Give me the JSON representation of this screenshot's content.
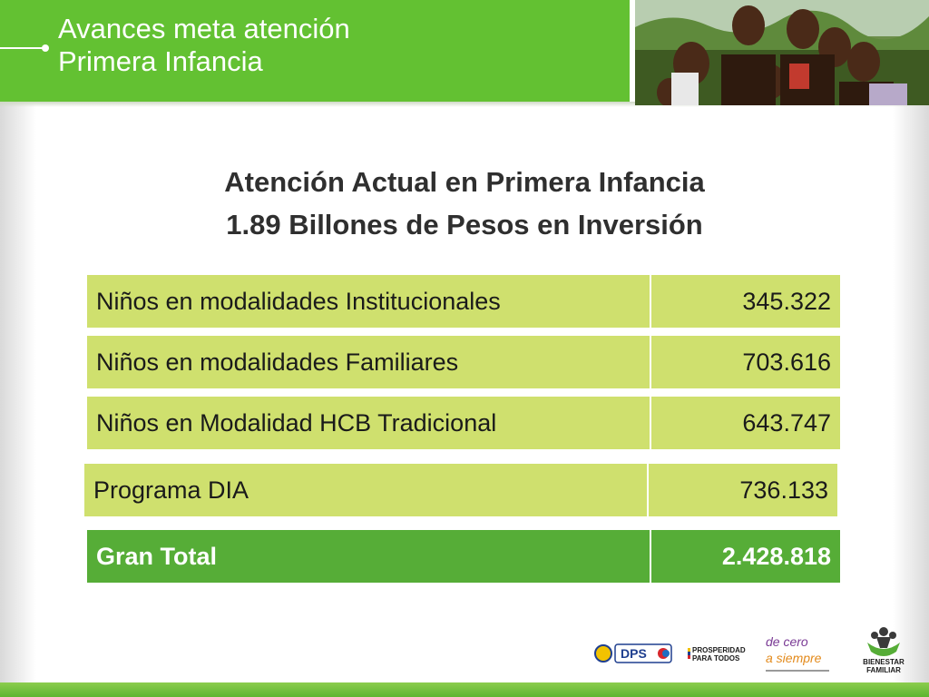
{
  "header": {
    "title_line1": "Avances meta atención",
    "title_line2": "Primera Infancia"
  },
  "subtitle": {
    "line1": "Atención Actual en Primera Infancia",
    "line2": "1.89 Billones de Pesos en Inversión"
  },
  "table": {
    "rows": [
      {
        "label": "Niños en modalidades Institucionales",
        "value": "345.322"
      },
      {
        "label": "Niños en modalidades Familiares",
        "value": "703.616"
      },
      {
        "label": "Niños en Modalidad HCB Tradicional",
        "value": "643.747"
      },
      {
        "label": "Programa DIA",
        "value": "736.133"
      }
    ],
    "total": {
      "label": "Gran Total",
      "value": "2.428.818"
    }
  },
  "logos": {
    "dps": "DPS",
    "prosperidad_line1": "PROSPERIDAD",
    "prosperidad_line2": "PARA TODOS",
    "decero_line1": "de cero",
    "decero_line2": "a siempre",
    "bienestar_line1": "BIENESTAR",
    "bienestar_line2": "FAMILIAR"
  },
  "colors": {
    "brand_green": "#63c132",
    "row_fill": "#cfe06e",
    "total_fill": "#56ad37"
  }
}
